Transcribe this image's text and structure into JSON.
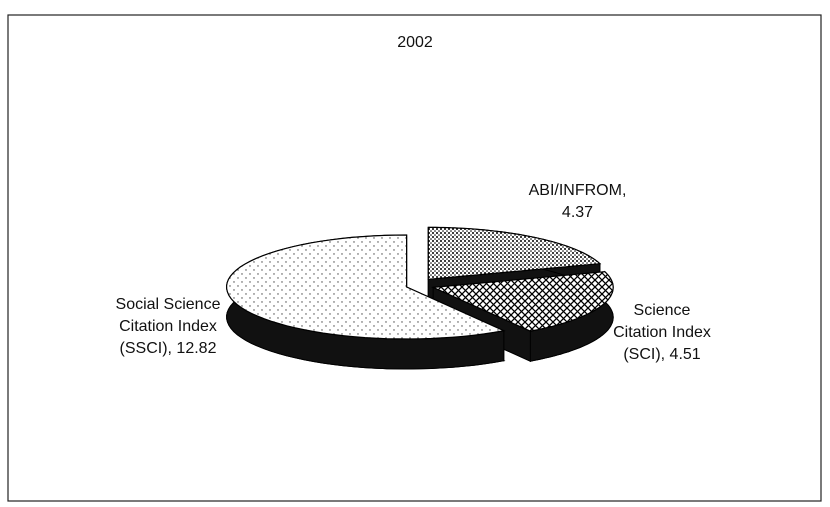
{
  "chart_data": {
    "type": "pie",
    "title": "2002",
    "categories": [
      "ABI/INFROM,",
      "Science Citation Index (SCI),",
      "Social Science Citation Index (SSCI),"
    ],
    "values": [
      4.37,
      4.51,
      12.82
    ]
  }
}
